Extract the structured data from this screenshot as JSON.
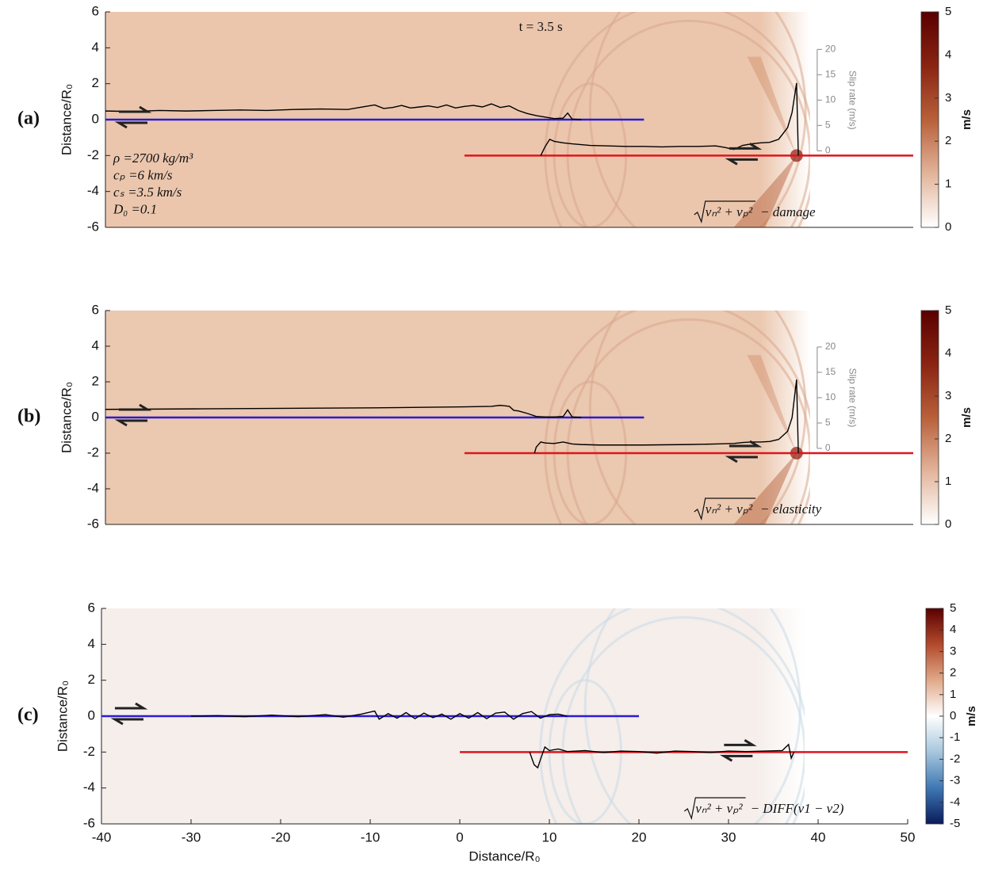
{
  "chart_data": [
    {
      "type": "heatmap",
      "label": "(a)",
      "ylabel": "Distance/R₀",
      "xlim": [
        -40,
        50
      ],
      "ylim": [
        -6,
        6
      ],
      "yticks": [
        6,
        4,
        2,
        0,
        -2,
        -4,
        -6
      ],
      "field_color": "#ebc6ad",
      "time": "t = 3.5 s",
      "parameters": [
        "ρ =2700 kg/m³",
        "cₚ =6 km/s",
        "cₛ =3.5 km/s",
        "D₀ =0.1"
      ],
      "formula": {
        "radicand": "vₙ² + vₚ²",
        "suffix": "− damage"
      },
      "slip_axis": {
        "label": "Slip rate (m/s)",
        "ticks": [
          0,
          5,
          10,
          15,
          20
        ]
      },
      "colorbar": {
        "label": "m/s",
        "lim": [
          0,
          5
        ],
        "ticks": [
          0,
          1,
          2,
          3,
          4,
          5
        ],
        "colors": [
          "#ffffff",
          "#e2b49a",
          "#b8603a",
          "#8a2412",
          "#5a0000"
        ]
      },
      "faults": [
        {
          "color": "#2a1bd6",
          "x": [
            -40,
            20
          ],
          "y": [
            0,
            0
          ],
          "slip_rate": {
            "x": [
              -40,
              -37,
              -34,
              -31,
              -28,
              -25,
              -22,
              -19,
              -16,
              -13,
              -11,
              -10,
              -9,
              -8,
              -7,
              -6,
              -5,
              -4,
              -3,
              -2,
              -1,
              0,
              1,
              2,
              3,
              4,
              5,
              6,
              7,
              8,
              9,
              10,
              11,
              11.5,
              12,
              13
            ],
            "values": [
              1.7,
              1.6,
              1.8,
              1.7,
              1.8,
              1.9,
              1.8,
              2.0,
              2.1,
              2.0,
              2.6,
              2.9,
              2.2,
              2.4,
              2.8,
              2.3,
              2.5,
              2.7,
              2.4,
              2.9,
              2.3,
              2.6,
              2.8,
              2.5,
              3.1,
              2.4,
              2.7,
              1.8,
              1.2,
              0.8,
              0.5,
              0.2,
              0.3,
              1.3,
              0.1,
              0
            ]
          }
        },
        {
          "color": "#e0141e",
          "x": [
            0,
            50
          ],
          "y": [
            -2,
            -2
          ],
          "slip_rate": {
            "x": [
              8.5,
              9,
              9.5,
              10,
              11,
              12,
              14,
              16,
              18,
              20,
              22,
              24,
              26,
              28,
              29,
              30,
              31,
              32,
              33,
              34,
              35,
              36,
              36.5,
              37,
              37.2
            ],
            "values": [
              0,
              1.8,
              3.2,
              2.8,
              2.5,
              2.3,
              2.0,
              1.9,
              1.8,
              1.8,
              1.7,
              1.8,
              1.8,
              1.9,
              1.6,
              1.2,
              2.0,
              2.3,
              2.5,
              2.6,
              3.2,
              5.5,
              8.5,
              14.3,
              0
            ]
          }
        }
      ]
    },
    {
      "type": "heatmap",
      "label": "(b)",
      "ylabel": "Distance/R₀",
      "xlim": [
        -40,
        50
      ],
      "ylim": [
        -6,
        6
      ],
      "yticks": [
        6,
        4,
        2,
        0,
        -2,
        -4,
        -6
      ],
      "field_color": "#ebc8b0",
      "formula": {
        "radicand": "vₙ² + vₚ²",
        "suffix": "− elasticity"
      },
      "slip_axis": {
        "label": "Slip rate (m/s)",
        "ticks": [
          0,
          5,
          10,
          15,
          20
        ]
      },
      "colorbar": {
        "label": "m/s",
        "lim": [
          0,
          5
        ],
        "ticks": [
          0,
          1,
          2,
          3,
          4,
          5
        ],
        "colors": [
          "#ffffff",
          "#e2b49a",
          "#b8603a",
          "#8a2412",
          "#5a0000"
        ]
      },
      "faults": [
        {
          "color": "#2a1bd6",
          "x": [
            -40,
            20
          ],
          "y": [
            0,
            0
          ],
          "slip_rate": {
            "x": [
              -40,
              -30,
              -20,
              -10,
              0,
              3,
              4,
              5,
              5.5,
              6,
              7,
              8,
              9,
              10,
              11,
              11.5,
              12,
              13
            ],
            "values": [
              1.6,
              1.7,
              1.8,
              1.9,
              2.1,
              2.2,
              2.4,
              2.2,
              1.4,
              1.3,
              0.8,
              0.2,
              0.1,
              0.1,
              0.2,
              1.5,
              0.1,
              0
            ]
          }
        },
        {
          "color": "#e0141e",
          "x": [
            0,
            50
          ],
          "y": [
            -2,
            -2
          ],
          "slip_rate": {
            "x": [
              7.8,
              8,
              8.5,
              9,
              10,
              11,
              12,
              13,
              15,
              20,
              25,
              28,
              30,
              31,
              32,
              33,
              34,
              35,
              36,
              36.5,
              37,
              37.2
            ],
            "values": [
              0,
              1.2,
              2.2,
              2.0,
              1.9,
              2.2,
              1.8,
              1.7,
              1.6,
              1.6,
              1.7,
              1.8,
              1.9,
              2.1,
              2.2,
              2.2,
              2.3,
              2.7,
              4.3,
              7,
              14.5,
              0
            ]
          }
        }
      ]
    },
    {
      "type": "heatmap",
      "label": "(c)",
      "ylabel": "Distance/R₀",
      "xlabel": "Distance/R₀",
      "xlim": [
        -40,
        50
      ],
      "ylim": [
        -6,
        6
      ],
      "yticks": [
        6,
        4,
        2,
        0,
        -2,
        -4,
        -6
      ],
      "xticks": [
        -40,
        -30,
        -20,
        -10,
        0,
        10,
        20,
        30,
        40,
        50
      ],
      "field_color": "#f5eeea",
      "formula": {
        "radicand": "vₙ² + vₚ²",
        "suffix": "− DIFF(v1 − v2)"
      },
      "colorbar": {
        "label": "m/s",
        "lim": [
          -5,
          5
        ],
        "ticks": [
          5,
          4,
          3,
          2,
          1,
          0,
          -1,
          -2,
          -3,
          -4,
          -5
        ],
        "colors": [
          "#0a1a5c",
          "#3f78b4",
          "#a7c6dd",
          "#ffffff",
          "#e0a98a",
          "#b24a2c",
          "#5a0000"
        ]
      },
      "faults": [
        {
          "color": "#2a1bd6",
          "x": [
            -40,
            20
          ],
          "y": [
            0,
            0
          ],
          "slip_rate": {
            "x": [
              -30,
              -27,
              -24,
              -21,
              -18,
              -15,
              -13,
              -11,
              -9.5,
              -9,
              -8,
              -7,
              -6,
              -5,
              -4,
              -3,
              -2,
              -1,
              0,
              1,
              2,
              3,
              4,
              5,
              6,
              7,
              8,
              9,
              10,
              11,
              12
            ],
            "values": [
              0,
              0.1,
              -0.1,
              0.2,
              -0.1,
              0.3,
              -0.2,
              0.4,
              1.0,
              -0.6,
              0.5,
              -0.4,
              0.7,
              -0.5,
              0.6,
              -0.3,
              0.4,
              -0.6,
              0.5,
              -0.4,
              0.7,
              -0.5,
              0.6,
              0.8,
              -0.6,
              0.5,
              0.9,
              -0.4,
              0.3,
              0.4,
              0
            ]
          }
        },
        {
          "color": "#e0141e",
          "x": [
            0,
            50
          ],
          "y": [
            -2,
            -2
          ],
          "slip_rate": {
            "x": [
              7.8,
              8.3,
              8.7,
              9,
              9.5,
              10,
              11,
              12,
              14,
              16,
              18,
              20,
              22,
              24,
              26,
              28,
              30,
              32,
              34,
              36,
              36.7,
              37,
              37.3
            ],
            "values": [
              0,
              -2.5,
              -3.1,
              -1.5,
              1.0,
              0.3,
              0.6,
              0.1,
              0.3,
              -0.1,
              0.2,
              0.1,
              -0.2,
              0.2,
              0.1,
              -0.1,
              0.2,
              0.1,
              0.2,
              0.3,
              1.5,
              -1.2,
              0
            ]
          }
        }
      ]
    }
  ]
}
